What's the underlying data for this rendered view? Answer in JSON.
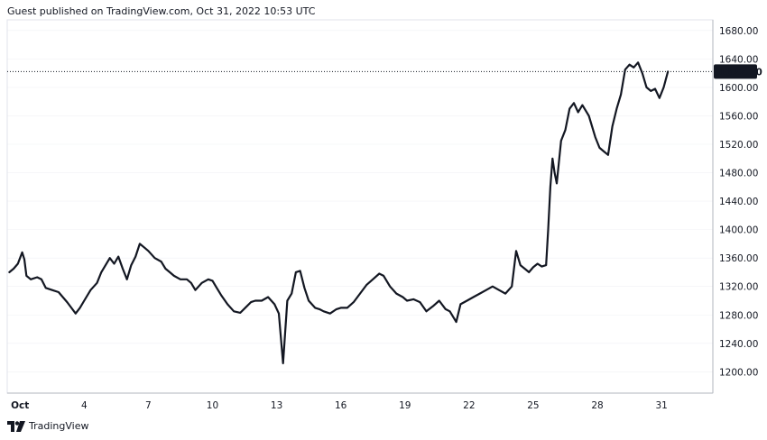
{
  "header": {
    "published": "Guest published on TradingView.com, Oct 31, 2022 10:53 UTC"
  },
  "footer": {
    "brand": "TradingView"
  },
  "colors": {
    "line": "#131722",
    "price_label_bg": "#131722",
    "price_label_text": "#ffffff",
    "grid": "#e0e3eb"
  },
  "chart_data": {
    "type": "line",
    "ylim": [
      1170,
      1695
    ],
    "y_ticks": [
      "1200.00",
      "1240.00",
      "1280.00",
      "1320.00",
      "1360.00",
      "1400.00",
      "1440.00",
      "1480.00",
      "1520.00",
      "1560.00",
      "1600.00",
      "1640.00",
      "1680.00"
    ],
    "x_ticks": [
      {
        "label": "Oct",
        "day": 1
      },
      {
        "label": "4",
        "day": 4
      },
      {
        "label": "7",
        "day": 7
      },
      {
        "label": "10",
        "day": 10
      },
      {
        "label": "13",
        "day": 13
      },
      {
        "label": "16",
        "day": 16
      },
      {
        "label": "19",
        "day": 19
      },
      {
        "label": "22",
        "day": 22
      },
      {
        "label": "25",
        "day": 25
      },
      {
        "label": "28",
        "day": 28
      },
      {
        "label": "31",
        "day": 31
      }
    ],
    "last_price": "1622.20",
    "last_price_value": 1622.2,
    "series": [
      {
        "x": [
          0.5,
          0.7,
          0.9,
          1.0,
          1.1,
          1.2,
          1.3,
          1.5,
          1.8,
          2.0,
          2.2,
          2.5,
          2.8,
          3.0,
          3.2,
          3.4,
          3.6,
          3.8,
          4.0,
          4.3,
          4.6,
          4.8,
          5.0,
          5.2,
          5.4,
          5.6,
          5.8,
          6.0,
          6.2,
          6.4,
          6.6,
          6.8,
          7.0,
          7.3,
          7.6,
          7.8,
          8.0,
          8.2,
          8.5,
          8.8,
          9.0,
          9.2,
          9.5,
          9.8,
          10.0,
          10.2,
          10.4,
          10.7,
          11.0,
          11.3,
          11.6,
          11.8,
          12.0,
          12.3,
          12.6,
          12.9,
          13.1,
          13.3,
          13.5,
          13.7,
          13.9,
          14.1,
          14.3,
          14.5,
          14.8,
          15.0,
          15.2,
          15.5,
          15.8,
          16.0,
          16.3,
          16.6,
          16.9,
          17.2,
          17.5,
          17.8,
          18.0,
          18.3,
          18.6,
          18.9,
          19.1,
          19.4,
          19.7,
          20.0,
          20.3,
          20.6,
          20.9,
          21.1,
          21.4,
          21.6,
          21.9,
          22.2,
          22.5,
          22.8,
          23.1,
          23.4,
          23.7,
          24.0,
          24.2,
          24.4,
          24.6,
          24.8,
          25.0,
          25.2,
          25.4,
          25.6,
          25.7,
          25.8,
          25.9,
          26.0,
          26.1,
          26.3,
          26.5,
          26.7,
          26.9,
          27.1,
          27.3,
          27.6,
          27.9,
          28.1,
          28.3,
          28.5,
          28.7,
          28.9,
          29.1,
          29.3,
          29.5,
          29.7,
          29.9,
          30.1,
          30.3,
          30.5,
          30.7,
          30.9,
          31.1,
          31.3
        ],
        "y": [
          1340,
          1345,
          1352,
          1360,
          1368,
          1358,
          1335,
          1330,
          1333,
          1330,
          1318,
          1315,
          1312,
          1305,
          1298,
          1290,
          1282,
          1290,
          1300,
          1315,
          1325,
          1340,
          1350,
          1360,
          1352,
          1362,
          1345,
          1330,
          1350,
          1362,
          1380,
          1375,
          1370,
          1360,
          1355,
          1345,
          1340,
          1335,
          1330,
          1330,
          1325,
          1315,
          1325,
          1330,
          1328,
          1318,
          1308,
          1295,
          1285,
          1283,
          1292,
          1298,
          1300,
          1300,
          1305,
          1295,
          1282,
          1212,
          1300,
          1310,
          1340,
          1342,
          1318,
          1300,
          1290,
          1288,
          1285,
          1282,
          1288,
          1290,
          1290,
          1298,
          1310,
          1322,
          1330,
          1338,
          1335,
          1320,
          1310,
          1305,
          1300,
          1302,
          1298,
          1285,
          1292,
          1300,
          1288,
          1285,
          1270,
          1295,
          1300,
          1305,
          1310,
          1315,
          1320,
          1315,
          1310,
          1320,
          1370,
          1350,
          1345,
          1340,
          1347,
          1352,
          1348,
          1350,
          1400,
          1460,
          1500,
          1480,
          1465,
          1525,
          1540,
          1570,
          1578,
          1565,
          1575,
          1560,
          1530,
          1515,
          1510,
          1505,
          1545,
          1570,
          1590,
          1625,
          1632,
          1628,
          1635,
          1620,
          1600,
          1595,
          1598,
          1585,
          1600,
          1622.2
        ]
      }
    ]
  }
}
